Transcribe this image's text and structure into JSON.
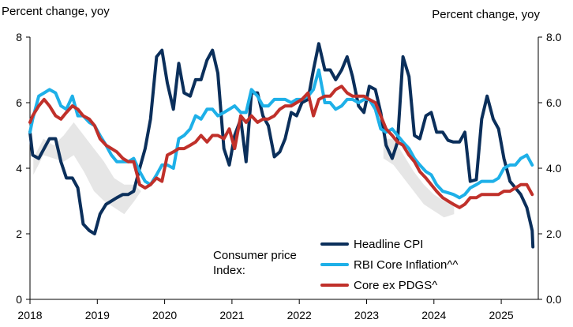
{
  "chart_data": {
    "type": "line",
    "title": "",
    "ylabel_left": "Percent change, yoy",
    "ylabel_right": "Percent change, yoy",
    "xlabel": "",
    "xlim": [
      2018.0,
      2025.55
    ],
    "ylim": [
      0,
      8
    ],
    "y_ticks_left": [
      "0",
      "2",
      "4",
      "6",
      "8"
    ],
    "y_ticks_right": [
      "0.0",
      "2.0",
      "4.0",
      "6.0",
      "8.0"
    ],
    "x_ticks": [
      "2018",
      "2019",
      "2020",
      "2021",
      "2022",
      "2023",
      "2024",
      "2025"
    ],
    "grid": false,
    "legend_position": "bottom-right",
    "legend_title": "Consumer price Index:",
    "series": [
      {
        "name": "Headline CPI",
        "color": "#0b2f5b",
        "x": [
          2018.0,
          2018.04,
          2018.13,
          2018.21,
          2018.29,
          2018.38,
          2018.46,
          2018.54,
          2018.63,
          2018.71,
          2018.79,
          2018.88,
          2018.96,
          2019.04,
          2019.13,
          2019.21,
          2019.29,
          2019.38,
          2019.46,
          2019.54,
          2019.63,
          2019.71,
          2019.79,
          2019.88,
          2019.96,
          2020.04,
          2020.13,
          2020.21,
          2020.29,
          2020.38,
          2020.46,
          2020.54,
          2020.63,
          2020.71,
          2020.79,
          2020.88,
          2020.96,
          2021.04,
          2021.13,
          2021.21,
          2021.29,
          2021.38,
          2021.46,
          2021.54,
          2021.63,
          2021.71,
          2021.79,
          2021.88,
          2021.96,
          2022.04,
          2022.13,
          2022.21,
          2022.29,
          2022.38,
          2022.46,
          2022.54,
          2022.63,
          2022.71,
          2022.79,
          2022.88,
          2022.96,
          2023.04,
          2023.13,
          2023.21,
          2023.29,
          2023.38,
          2023.46,
          2023.54,
          2023.63,
          2023.71,
          2023.79,
          2023.88,
          2023.96,
          2024.04,
          2024.13,
          2024.21,
          2024.29,
          2024.38,
          2024.46,
          2024.54,
          2024.63,
          2024.71,
          2024.79,
          2024.88,
          2024.96,
          2025.04,
          2025.13,
          2025.21,
          2025.29,
          2025.38,
          2025.46
        ],
        "values": [
          5.1,
          4.4,
          4.3,
          4.6,
          4.9,
          4.9,
          4.2,
          3.7,
          3.7,
          3.4,
          2.3,
          2.1,
          2.0,
          2.6,
          2.9,
          3.0,
          3.1,
          3.2,
          3.2,
          3.3,
          4.0,
          4.6,
          5.5,
          7.4,
          7.6,
          6.6,
          5.8,
          7.2,
          6.3,
          6.2,
          6.7,
          6.7,
          7.3,
          7.6,
          6.9,
          4.6,
          4.1,
          5.0,
          5.5,
          4.2,
          6.3,
          6.3,
          5.6,
          5.3,
          4.35,
          4.5,
          4.9,
          5.7,
          5.6,
          6.0,
          6.1,
          7.0,
          7.8,
          7.0,
          7.0,
          6.7,
          7.0,
          7.4,
          6.8,
          5.9,
          5.7,
          6.5,
          6.4,
          5.7,
          4.7,
          4.3,
          4.8,
          7.4,
          6.8,
          5.0,
          4.9,
          5.6,
          5.7,
          5.1,
          5.1,
          4.85,
          4.8,
          4.8,
          5.1,
          3.6,
          3.65,
          5.5,
          6.2,
          5.5,
          5.2,
          4.3,
          3.6,
          3.4,
          3.2,
          2.8,
          2.1
        ],
        "end_point": [
          2025.47,
          1.6
        ]
      },
      {
        "name": "RBI Core Inflation^^",
        "color": "#1eb0e8",
        "x": [
          2018.0,
          2018.04,
          2018.13,
          2018.21,
          2018.29,
          2018.38,
          2018.46,
          2018.54,
          2018.63,
          2018.71,
          2018.79,
          2018.88,
          2018.96,
          2019.04,
          2019.13,
          2019.21,
          2019.29,
          2019.38,
          2019.46,
          2019.54,
          2019.63,
          2019.71,
          2019.79,
          2019.88,
          2019.96,
          2020.04,
          2020.13,
          2020.21,
          2020.29,
          2020.38,
          2020.46,
          2020.54,
          2020.63,
          2020.71,
          2020.79,
          2020.88,
          2020.96,
          2021.04,
          2021.13,
          2021.21,
          2021.29,
          2021.38,
          2021.46,
          2021.54,
          2021.63,
          2021.71,
          2021.79,
          2021.88,
          2021.96,
          2022.04,
          2022.13,
          2022.21,
          2022.29,
          2022.38,
          2022.46,
          2022.54,
          2022.63,
          2022.71,
          2022.79,
          2022.88,
          2022.96,
          2023.04,
          2023.13,
          2023.21,
          2023.29,
          2023.38,
          2023.46,
          2023.54,
          2023.63,
          2023.71,
          2023.79,
          2023.88,
          2023.96,
          2024.04,
          2024.13,
          2024.21,
          2024.29,
          2024.38,
          2024.46,
          2024.54,
          2024.63,
          2024.71,
          2024.79,
          2024.88,
          2024.96,
          2025.04,
          2025.13,
          2025.21,
          2025.29,
          2025.38,
          2025.46
        ],
        "values": [
          5.1,
          5.5,
          6.2,
          6.3,
          6.4,
          6.3,
          5.9,
          5.8,
          6.2,
          5.6,
          5.6,
          5.4,
          5.3,
          5.0,
          4.7,
          4.4,
          4.2,
          4.2,
          4.2,
          4.3,
          3.9,
          3.6,
          3.5,
          3.8,
          4.1,
          4.1,
          4.0,
          4.9,
          5.0,
          5.2,
          5.6,
          5.5,
          5.8,
          5.8,
          5.6,
          5.7,
          5.8,
          5.9,
          5.7,
          5.7,
          6.4,
          6.2,
          5.9,
          5.9,
          6.1,
          6.1,
          6.1,
          6.0,
          6.1,
          6.1,
          6.2,
          6.4,
          7.0,
          6.0,
          6.0,
          5.8,
          5.9,
          6.1,
          6.1,
          6.0,
          6.1,
          6.1,
          5.8,
          5.2,
          5.1,
          5.2,
          5.0,
          4.8,
          4.6,
          4.3,
          4.1,
          3.9,
          3.8,
          3.5,
          3.3,
          3.25,
          3.2,
          3.1,
          3.2,
          3.4,
          3.5,
          3.6,
          3.6,
          3.6,
          3.7,
          4.0,
          4.1,
          4.1,
          4.3,
          4.4,
          4.1
        ]
      },
      {
        "name": "Core ex PDGS^",
        "color": "#c0302a",
        "x": [
          2018.0,
          2018.04,
          2018.13,
          2018.21,
          2018.29,
          2018.38,
          2018.46,
          2018.54,
          2018.63,
          2018.71,
          2018.79,
          2018.88,
          2018.96,
          2019.04,
          2019.13,
          2019.21,
          2019.29,
          2019.38,
          2019.46,
          2019.54,
          2019.63,
          2019.71,
          2019.79,
          2019.88,
          2019.96,
          2020.04,
          2020.13,
          2020.21,
          2020.29,
          2020.38,
          2020.46,
          2020.54,
          2020.63,
          2020.71,
          2020.79,
          2020.88,
          2020.96,
          2021.04,
          2021.13,
          2021.21,
          2021.29,
          2021.38,
          2021.46,
          2021.54,
          2021.63,
          2021.71,
          2021.79,
          2021.88,
          2021.96,
          2022.04,
          2022.13,
          2022.21,
          2022.29,
          2022.38,
          2022.46,
          2022.54,
          2022.63,
          2022.71,
          2022.79,
          2022.88,
          2022.96,
          2023.04,
          2023.13,
          2023.21,
          2023.29,
          2023.38,
          2023.46,
          2023.54,
          2023.63,
          2023.71,
          2023.79,
          2023.88,
          2023.96,
          2024.04,
          2024.13,
          2024.21,
          2024.29,
          2024.38,
          2024.46,
          2024.54,
          2024.63,
          2024.71,
          2024.79,
          2024.88,
          2024.96,
          2025.04,
          2025.13,
          2025.21,
          2025.29,
          2025.38,
          2025.46
        ],
        "values": [
          5.4,
          5.6,
          5.9,
          6.1,
          5.9,
          5.6,
          5.5,
          5.7,
          5.9,
          5.8,
          5.6,
          5.5,
          5.3,
          4.9,
          4.7,
          4.6,
          4.5,
          4.3,
          4.2,
          4.2,
          3.5,
          3.4,
          3.5,
          3.7,
          3.6,
          4.4,
          4.5,
          4.6,
          4.6,
          4.7,
          4.8,
          5.0,
          4.8,
          5.0,
          5.0,
          4.9,
          5.2,
          4.6,
          5.6,
          5.4,
          5.6,
          5.4,
          5.5,
          5.5,
          5.6,
          5.8,
          5.9,
          5.9,
          6.0,
          6.1,
          6.3,
          5.6,
          6.1,
          6.2,
          6.2,
          6.4,
          6.5,
          6.3,
          6.2,
          6.2,
          6.2,
          6.1,
          6.0,
          5.6,
          5.2,
          5.0,
          4.8,
          4.7,
          4.4,
          4.2,
          3.9,
          3.7,
          3.5,
          3.3,
          3.1,
          3.0,
          2.9,
          2.8,
          2.9,
          3.1,
          3.1,
          3.2,
          3.2,
          3.2,
          3.2,
          3.3,
          3.3,
          3.4,
          3.5,
          3.5,
          3.2
        ]
      }
    ],
    "shaded_band": {
      "color": "#e6e6e6",
      "segments": [
        {
          "x": [
            2018.05,
            2018.2,
            2018.35,
            2018.5,
            2018.65,
            2018.8,
            2018.95,
            2019.1,
            2019.25,
            2019.4,
            2019.55,
            2019.65
          ],
          "upper": [
            4.3,
            4.9,
            4.7,
            5.0,
            5.4,
            5.0,
            4.6,
            4.2,
            3.7,
            3.5,
            3.5,
            3.3
          ],
          "lower": [
            3.8,
            4.4,
            4.3,
            4.2,
            4.4,
            3.9,
            3.3,
            3.0,
            2.8,
            2.6,
            3.0,
            3.3
          ]
        },
        {
          "x": [
            2023.25,
            2023.4,
            2023.55,
            2023.7,
            2023.85,
            2024.0,
            2024.15,
            2024.3
          ],
          "upper": [
            4.9,
            4.9,
            4.4,
            3.9,
            3.5,
            3.2,
            3.0,
            2.9
          ],
          "lower": [
            4.3,
            4.1,
            3.7,
            3.3,
            2.9,
            2.7,
            2.5,
            2.6
          ]
        }
      ]
    }
  }
}
